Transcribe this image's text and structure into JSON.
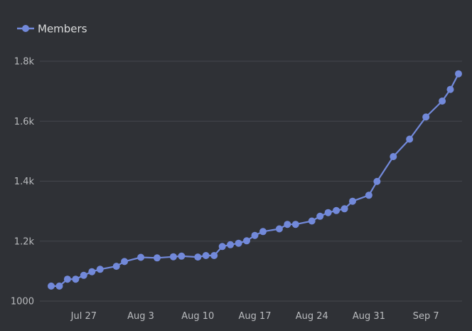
{
  "colors": {
    "background": "#2f3136",
    "series": "#7289da",
    "grid": "#44474d",
    "text": "#b9bbbe",
    "legend_text": "#dcddde"
  },
  "chart_data": {
    "type": "line",
    "legend_placement": "top-left",
    "grid": "horizontal",
    "ylim": [
      1000,
      1800
    ],
    "y_ticks": [
      "1000",
      "1.2k",
      "1.4k",
      "1.6k",
      "1.8k"
    ],
    "y_tick_values": [
      1000,
      1200,
      1400,
      1600,
      1800
    ],
    "x_range": [
      "2020-07-23",
      "2020-09-11"
    ],
    "x_ticks": [
      "Jul 27",
      "Aug 3",
      "Aug 10",
      "Aug 17",
      "Aug 24",
      "Aug 31",
      "Sep 7"
    ],
    "x_tick_dates": [
      "2020-07-27",
      "2020-08-03",
      "2020-08-10",
      "2020-08-17",
      "2020-08-24",
      "2020-08-31",
      "2020-09-07"
    ],
    "series": [
      {
        "name": "Members",
        "color": "#7289da",
        "x": [
          "2020-07-23",
          "2020-07-24",
          "2020-07-25",
          "2020-07-26",
          "2020-07-27",
          "2020-07-28",
          "2020-07-29",
          "2020-07-31",
          "2020-08-01",
          "2020-08-03",
          "2020-08-05",
          "2020-08-07",
          "2020-08-08",
          "2020-08-10",
          "2020-08-11",
          "2020-08-12",
          "2020-08-13",
          "2020-08-14",
          "2020-08-15",
          "2020-08-16",
          "2020-08-17",
          "2020-08-18",
          "2020-08-20",
          "2020-08-21",
          "2020-08-22",
          "2020-08-24",
          "2020-08-25",
          "2020-08-26",
          "2020-08-27",
          "2020-08-28",
          "2020-08-29",
          "2020-08-31",
          "2020-09-01",
          "2020-09-03",
          "2020-09-05",
          "2020-09-07",
          "2020-09-09",
          "2020-09-10",
          "2020-09-11"
        ],
        "values": [
          1050,
          1050,
          1073,
          1073,
          1086,
          1098,
          1106,
          1116,
          1132,
          1146,
          1144,
          1148,
          1150,
          1147,
          1152,
          1152,
          1182,
          1188,
          1193,
          1201,
          1219,
          1232,
          1241,
          1256,
          1256,
          1267,
          1283,
          1295,
          1302,
          1308,
          1333,
          1353,
          1399,
          1482,
          1540,
          1614,
          1667,
          1706,
          1758
        ]
      }
    ]
  }
}
